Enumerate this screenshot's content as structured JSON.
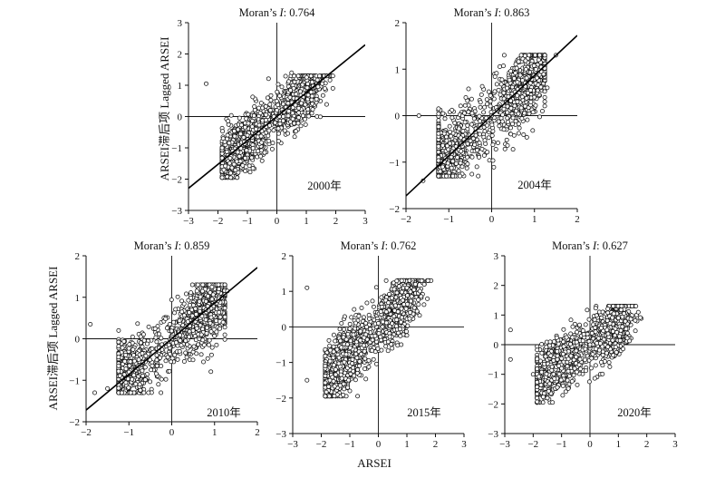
{
  "figure": {
    "shared_xlabel": "ARSEI",
    "shared_ylabel": "ARSEI滞后项  Lagged ARSEI"
  },
  "chart_data": [
    {
      "type": "scatter",
      "title": "Moran’s I: 0.764",
      "year_label": "2000年",
      "morans_i": 0.764,
      "xlim": [
        -3,
        3
      ],
      "ylim": [
        -3,
        3
      ],
      "xticks": [
        -3,
        -2,
        -1,
        0,
        1,
        2,
        3
      ],
      "yticks": [
        -3,
        -2,
        -1,
        0,
        1,
        2,
        3
      ],
      "fit_line": {
        "slope": 0.764,
        "intercept": 0
      },
      "n_points": 1500,
      "points_sample": [
        [
          -2.4,
          1.05
        ],
        [
          -1.5,
          -1.1
        ],
        [
          -1.0,
          -0.6
        ],
        [
          0.0,
          0.2
        ],
        [
          0.8,
          0.8
        ],
        [
          1.2,
          1.1
        ],
        [
          1.9,
          1.3
        ],
        [
          1.9,
          0.9
        ],
        [
          -1.8,
          -1.7
        ],
        [
          0.5,
          1.4
        ]
      ],
      "seed": 11
    },
    {
      "type": "scatter",
      "title": "Moran’s I: 0.863",
      "year_label": "2004年",
      "morans_i": 0.863,
      "xlim": [
        -2,
        2
      ],
      "ylim": [
        -2,
        2
      ],
      "xticks": [
        -2,
        -1,
        0,
        1,
        2
      ],
      "yticks": [
        -2,
        -1,
        0,
        1,
        2
      ],
      "fit_line": {
        "slope": 0.863,
        "intercept": 0
      },
      "n_points": 1500,
      "points_sample": [
        [
          -1.7,
          0.0
        ],
        [
          -1.2,
          -1.2
        ],
        [
          -0.8,
          -0.9
        ],
        [
          0.0,
          0.0
        ],
        [
          0.8,
          1.0
        ],
        [
          1.1,
          1.2
        ],
        [
          1.5,
          1.3
        ],
        [
          -1.6,
          -1.4
        ],
        [
          0.6,
          0.3
        ],
        [
          1.3,
          0.6
        ]
      ],
      "seed": 22
    },
    {
      "type": "scatter",
      "title": "Moran’s I: 0.859",
      "year_label": "2010年",
      "morans_i": 0.859,
      "xlim": [
        -2,
        2
      ],
      "ylim": [
        -2,
        2
      ],
      "xticks": [
        -2,
        -1,
        0,
        1,
        2
      ],
      "yticks": [
        -2,
        -1,
        0,
        1,
        2
      ],
      "fit_line": {
        "slope": 0.859,
        "intercept": 0
      },
      "n_points": 1500,
      "points_sample": [
        [
          -1.9,
          0.35
        ],
        [
          -1.5,
          -1.2
        ],
        [
          -1.0,
          -0.8
        ],
        [
          0.0,
          0.0
        ],
        [
          0.8,
          0.9
        ],
        [
          1.1,
          1.2
        ],
        [
          1.3,
          1.15
        ],
        [
          -1.8,
          -1.3
        ],
        [
          0.5,
          0.2
        ],
        [
          1.2,
          0.4
        ]
      ],
      "seed": 33
    },
    {
      "type": "scatter",
      "title": "Moran’s I: 0.762",
      "year_label": "2015年",
      "morans_i": 0.762,
      "xlim": [
        -3,
        3
      ],
      "ylim": [
        -3,
        2
      ],
      "xticks": [
        -3,
        -2,
        -1,
        0,
        1,
        2,
        3
      ],
      "yticks": [
        -3,
        -2,
        -1,
        0,
        1,
        2
      ],
      "fit_line": null,
      "n_points": 1500,
      "points_sample": [
        [
          -2.5,
          1.1
        ],
        [
          -2.5,
          -1.5
        ],
        [
          -1.5,
          -1.2
        ],
        [
          -0.5,
          -0.3
        ],
        [
          0.0,
          0.1
        ],
        [
          0.6,
          0.6
        ],
        [
          1.0,
          1.1
        ],
        [
          1.3,
          1.2
        ],
        [
          -1.0,
          -1.8
        ],
        [
          0.8,
          -0.5
        ]
      ],
      "seed": 44
    },
    {
      "type": "scatter",
      "title": "Moran’s I: 0.627",
      "year_label": "2020年",
      "morans_i": 0.627,
      "xlim": [
        -3,
        3
      ],
      "ylim": [
        -3,
        3
      ],
      "xticks": [
        -3,
        -2,
        -1,
        0,
        1,
        2,
        3
      ],
      "yticks": [
        -3,
        -2,
        -1,
        0,
        1,
        2,
        3
      ],
      "fit_line": null,
      "n_points": 1500,
      "points_sample": [
        [
          -2.8,
          0.5
        ],
        [
          -2.8,
          -0.5
        ],
        [
          -2.0,
          -1.0
        ],
        [
          -1.0,
          -0.8
        ],
        [
          0.0,
          0.0
        ],
        [
          0.6,
          0.5
        ],
        [
          1.0,
          0.9
        ],
        [
          1.2,
          1.05
        ],
        [
          -1.5,
          -1.8
        ],
        [
          0.2,
          -0.7
        ]
      ],
      "seed": 55
    }
  ]
}
